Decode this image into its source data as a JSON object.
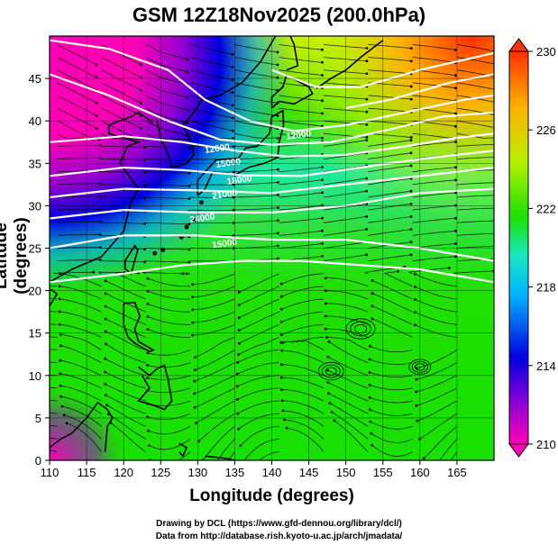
{
  "title": "GSM 12Z18Nov2025 (200.0hPa)",
  "xlabel": "Longitude (degrees)",
  "ylabel": "Latitude  (degrees)",
  "credits": [
    "Drawing by DCL (https://www.gfd-dennou.org/library/dcl/)",
    "Data from http://database.rish.kyoto-u.ac.jp/arch/jmadata/"
  ],
  "map": {
    "lon_range": [
      110,
      170
    ],
    "lat_range": [
      0,
      50
    ],
    "lon_ticks": [
      "110",
      "115",
      "120",
      "125",
      "130",
      "135",
      "140",
      "145",
      "150",
      "155",
      "160",
      "165"
    ],
    "lat_ticks": [
      "0",
      "5",
      "10",
      "15",
      "20",
      "25",
      "30",
      "35",
      "40",
      "45"
    ],
    "colorbar": {
      "ticks": [
        "210",
        "214",
        "218",
        "222",
        "226",
        "230"
      ],
      "stops": [
        "#ff00b4",
        "#7a00d8",
        "#0000e0",
        "#00b4ff",
        "#18e8c0",
        "#1ee000",
        "#b8f000",
        "#ffb000",
        "#ff3000"
      ]
    },
    "field": "temperature (K) colour shading with streamlines of wind and white isotach contours",
    "contour_labels": [
      "12000",
      "15000",
      "18000",
      "21000",
      "24000"
    ]
  }
}
